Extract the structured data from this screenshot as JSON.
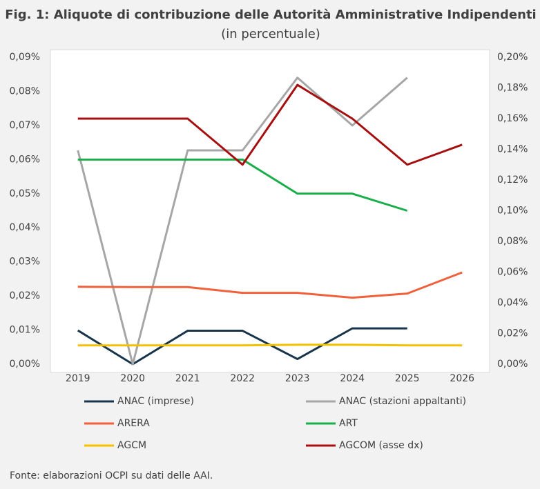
{
  "chart_data": {
    "type": "line",
    "title": "Fig. 1: Aliquote di contribuzione delle Autorità Amministrative Indipendenti",
    "subtitle": "(in percentuale)",
    "source": "Fonte: elaborazioni OCPI su dati delle AAI.",
    "categories": [
      "2019",
      "2020",
      "2021",
      "2022",
      "2023",
      "2024",
      "2025",
      "2026"
    ],
    "series": [
      {
        "name": "ANAC (imprese)",
        "color": "#17344a",
        "values": [
          0.0099,
          0.0,
          0.0098,
          0.0098,
          0.0015,
          0.0105,
          0.0105,
          null
        ]
      },
      {
        "name": "ANAC (stazioni appaltanti)",
        "color": "#a6a6a6",
        "values": [
          0.0627,
          0.0,
          0.0627,
          0.0627,
          0.084,
          0.07,
          0.084,
          null
        ]
      },
      {
        "name": "ARERA",
        "color": "#f0603a",
        "values": [
          0.0227,
          0.0226,
          0.0226,
          0.0209,
          0.0209,
          0.0195,
          0.0207,
          0.0269
        ]
      },
      {
        "name": "ART",
        "color": "#1aae4a",
        "values": [
          0.06,
          0.06,
          0.06,
          0.06,
          0.05,
          0.05,
          0.045,
          null
        ]
      },
      {
        "name": "AGCM",
        "color": "#f5c000",
        "values": [
          0.0055,
          0.0055,
          0.0055,
          0.0055,
          0.0057,
          0.0057,
          0.0055,
          0.0055
        ]
      },
      {
        "name": "AGCOM (asse dx)",
        "color": "#a50f0f",
        "axis": "y2",
        "values": [
          0.16,
          0.16,
          0.16,
          0.13,
          0.182,
          0.16,
          0.13,
          0.143
        ]
      }
    ],
    "ylim": [
      0,
      0.09
    ],
    "yticks": [
      {
        "value": 0,
        "label": "0,00%"
      },
      {
        "value": 0.01,
        "label": "0,01%"
      },
      {
        "value": 0.02,
        "label": "0,02%"
      },
      {
        "value": 0.03,
        "label": "0,03%"
      },
      {
        "value": 0.04,
        "label": "0,04%"
      },
      {
        "value": 0.05,
        "label": "0,05%"
      },
      {
        "value": 0.06,
        "label": "0,06%"
      },
      {
        "value": 0.07,
        "label": "0,07%"
      },
      {
        "value": 0.08,
        "label": "0,08%"
      },
      {
        "value": 0.09,
        "label": "0,09%"
      }
    ],
    "y2lim": [
      0,
      0.2
    ],
    "y2ticks": [
      {
        "value": 0,
        "label": "0,00%"
      },
      {
        "value": 0.02,
        "label": "0,02%"
      },
      {
        "value": 0.04,
        "label": "0,04%"
      },
      {
        "value": 0.06,
        "label": "0,06%"
      },
      {
        "value": 0.08,
        "label": "0,08%"
      },
      {
        "value": 0.1,
        "label": "0,10%"
      },
      {
        "value": 0.12,
        "label": "0,12%"
      },
      {
        "value": 0.14,
        "label": "0,14%"
      },
      {
        "value": 0.16,
        "label": "0,16%"
      },
      {
        "value": 0.18,
        "label": "0,18%"
      },
      {
        "value": 0.2,
        "label": "0,20%"
      }
    ],
    "grid": false,
    "legend": "bottom"
  }
}
